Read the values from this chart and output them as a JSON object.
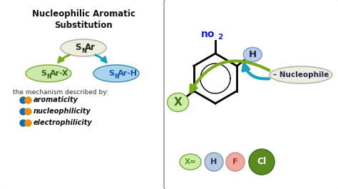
{
  "bg_color": "#e8e8e8",
  "left_panel_bg": "#ffffff",
  "right_panel_bg": "#ffffff",
  "title_color": "#111111",
  "snar_bg": "#eeeedf",
  "snar_x_bg": "#cce8aa",
  "snar_h_bg": "#aad4ee",
  "green_arrow_color": "#7aaa1a",
  "teal_arrow_color": "#1aa0bb",
  "mechanism_text": "the mechanism described by:",
  "items": [
    "aromaticity",
    "nucleophilicity",
    "electrophilicity"
  ],
  "dot_blue": "#1a6aaa",
  "dot_orange": "#e89010",
  "no2_color": "#1818cc",
  "h_bubble_color": "#b8ccee",
  "x_bubble_color": "#cceeaa",
  "nucleophile_bg": "#eeeedf",
  "nucleophile_color": "#222255",
  "x_eq_color": "#559911",
  "h_circle_color": "#b8c8e0",
  "f_circle_color": "#f0a8a0",
  "cl_circle_color": "#5a8a20",
  "panel_edge": "#999999"
}
